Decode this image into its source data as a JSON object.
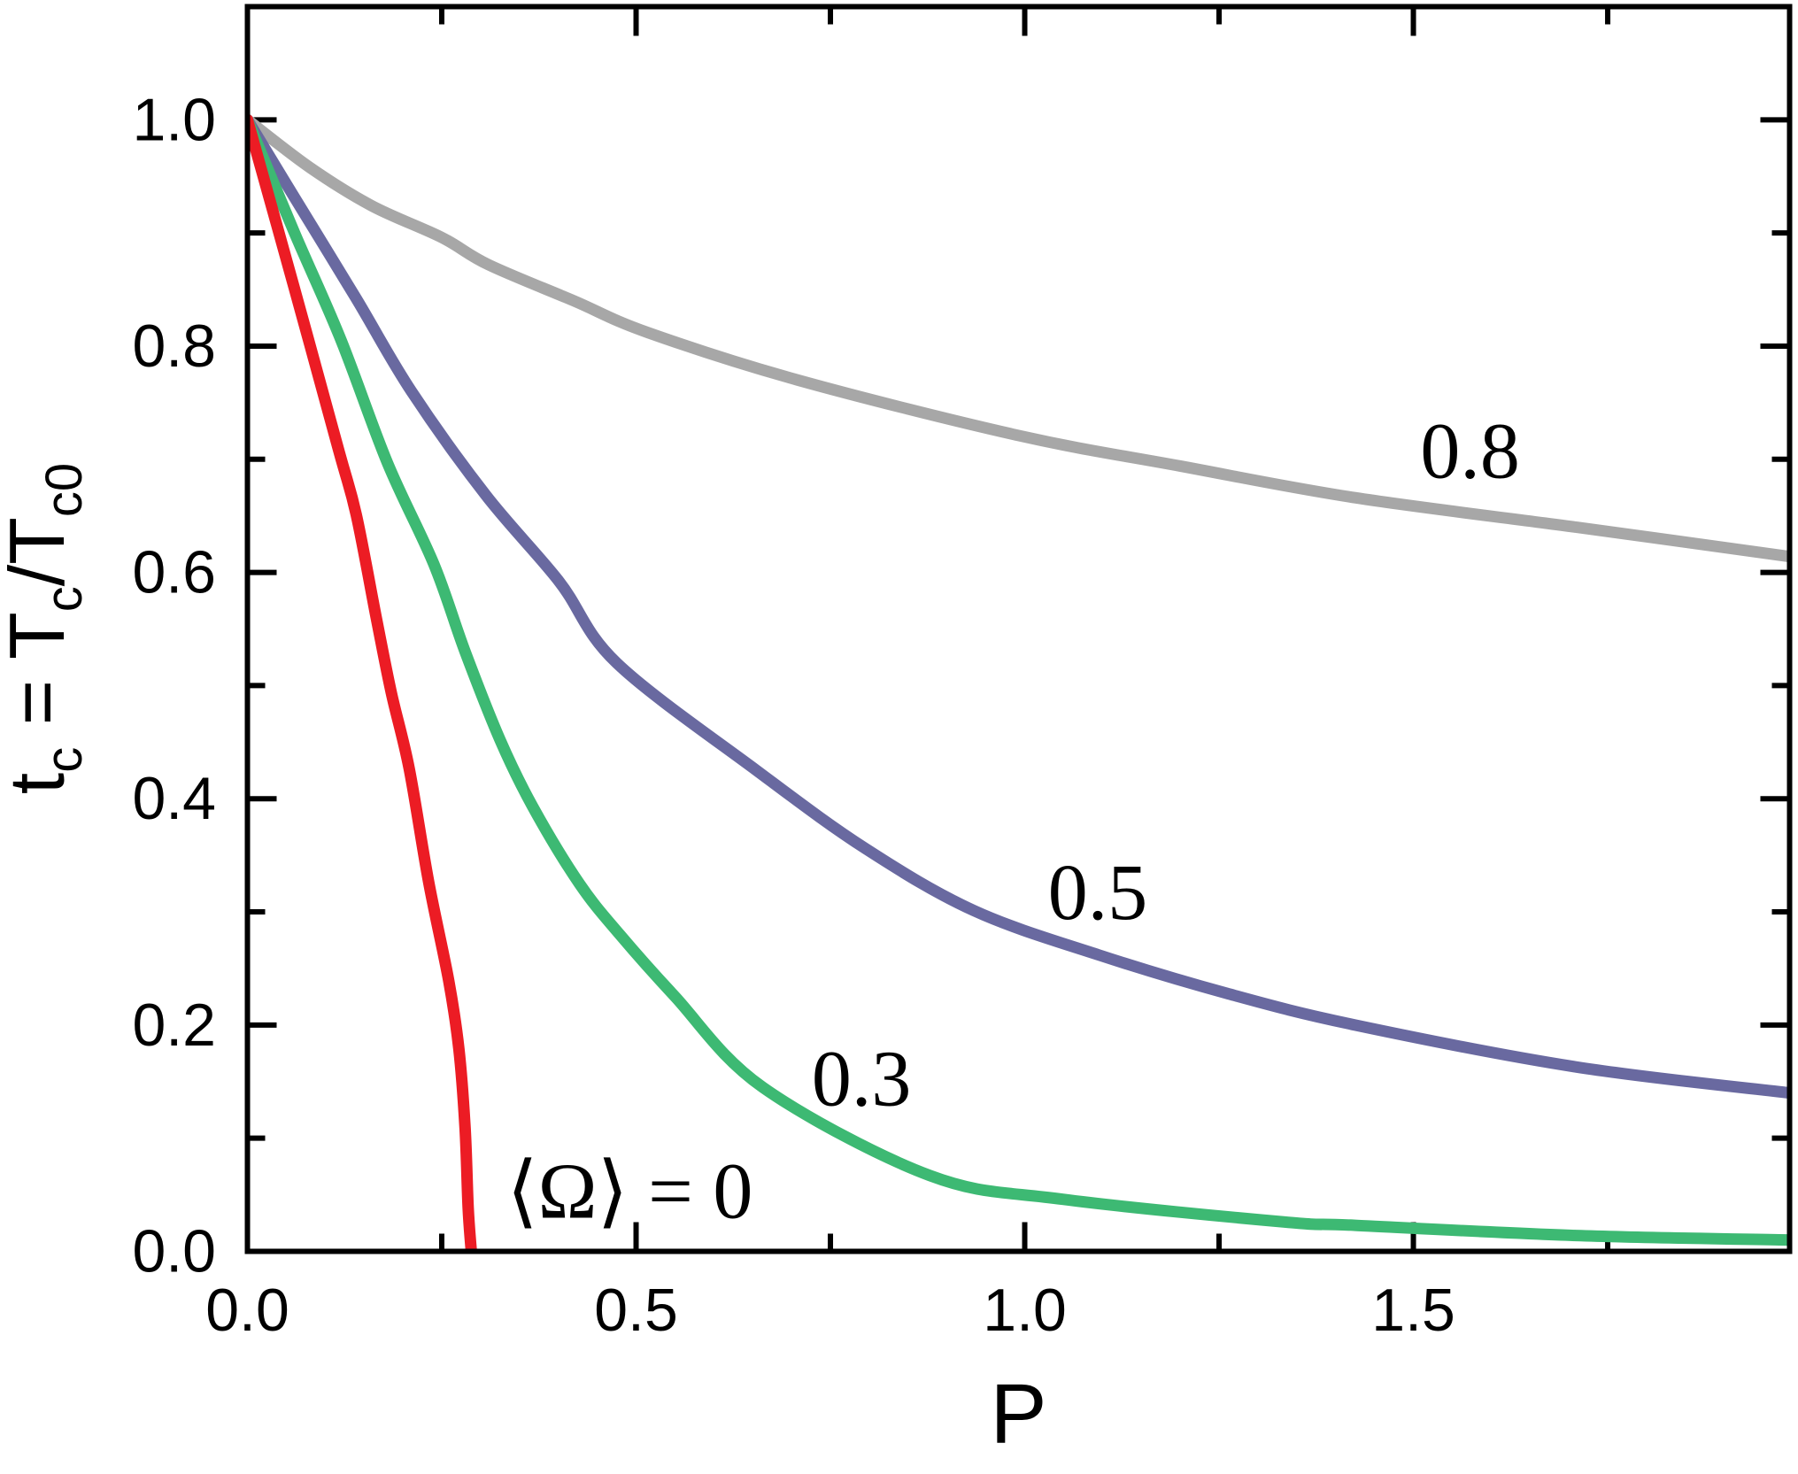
{
  "chart_data": {
    "type": "line",
    "xlabel": "P",
    "ylabel": "tc = Tc/Tc0",
    "ylabel_parts": [
      {
        "text": "t",
        "sub": false
      },
      {
        "text": "c",
        "sub": true
      },
      {
        "text": " = T",
        "sub": false
      },
      {
        "text": "c",
        "sub": true
      },
      {
        "text": "/T",
        "sub": false
      },
      {
        "text": "c0",
        "sub": true
      }
    ],
    "x_range": [
      0,
      1.984
    ],
    "y_range": [
      0,
      1.1
    ],
    "grid": false,
    "legend_position": "none (curves labeled inline)",
    "x_ticks": {
      "major": [
        {
          "value": 0.0,
          "label": "0.0"
        },
        {
          "value": 0.5,
          "label": "0.5"
        },
        {
          "value": 1.0,
          "label": "1.0"
        },
        {
          "value": 1.5,
          "label": "1.5"
        }
      ],
      "minor": [
        0.25,
        0.75,
        1.25,
        1.75
      ]
    },
    "y_ticks": {
      "major": [
        {
          "value": 0.0,
          "label": "0.0"
        },
        {
          "value": 0.2,
          "label": "0.2"
        },
        {
          "value": 0.4,
          "label": "0.4"
        },
        {
          "value": 0.6,
          "label": "0.6"
        },
        {
          "value": 0.8,
          "label": "0.8"
        },
        {
          "value": 1.0,
          "label": "1.0"
        }
      ],
      "minor": [
        0.1,
        0.3,
        0.5,
        0.7,
        0.9
      ]
    },
    "colors": {
      "background": "#ffffff",
      "axis": "#000000",
      "omega_0.8": "#a7a7a7",
      "omega_0.5": "#6969a0",
      "omega_0.3": "#3db973",
      "omega_0": "#ec1c24"
    },
    "series": [
      {
        "name": "omega-0.8",
        "label": "0.8",
        "color": "#a7a7a7",
        "label_anchor": {
          "x": 1.573,
          "y": 0.707
        },
        "points": [
          [
            0,
            1.0
          ],
          [
            0.08,
            0.958
          ],
          [
            0.16,
            0.924
          ],
          [
            0.25,
            0.896
          ],
          [
            0.31,
            0.872
          ],
          [
            0.42,
            0.84
          ],
          [
            0.515,
            0.812
          ],
          [
            0.708,
            0.77
          ],
          [
            0.992,
            0.721
          ],
          [
            1.2,
            0.694
          ],
          [
            1.425,
            0.666
          ],
          [
            1.709,
            0.64
          ],
          [
            1.984,
            0.614
          ]
        ]
      },
      {
        "name": "omega-0.5",
        "label": "0.5",
        "color": "#6969a0",
        "label_anchor": {
          "x": 1.094,
          "y": 0.317
        },
        "points": [
          [
            0,
            1.0
          ],
          [
            0.06,
            0.932
          ],
          [
            0.14,
            0.842
          ],
          [
            0.211,
            0.76
          ],
          [
            0.307,
            0.668
          ],
          [
            0.401,
            0.592
          ],
          [
            0.475,
            0.52
          ],
          [
            0.655,
            0.425
          ],
          [
            0.795,
            0.356
          ],
          [
            0.935,
            0.301
          ],
          [
            1.095,
            0.262
          ],
          [
            1.26,
            0.228
          ],
          [
            1.425,
            0.2
          ],
          [
            1.709,
            0.163
          ],
          [
            1.984,
            0.14
          ]
        ]
      },
      {
        "name": "omega-0.3",
        "label": "0.3",
        "color": "#3db973",
        "label_anchor": {
          "x": 0.79,
          "y": 0.152
        },
        "points": [
          [
            0,
            1.0
          ],
          [
            0.06,
            0.901
          ],
          [
            0.12,
            0.806
          ],
          [
            0.18,
            0.697
          ],
          [
            0.24,
            0.607
          ],
          [
            0.28,
            0.53
          ],
          [
            0.325,
            0.452
          ],
          [
            0.367,
            0.393
          ],
          [
            0.427,
            0.325
          ],
          [
            0.479,
            0.28
          ],
          [
            0.549,
            0.226
          ],
          [
            0.663,
            0.145
          ],
          [
            0.878,
            0.067
          ],
          [
            1.049,
            0.046
          ],
          [
            1.333,
            0.026
          ],
          [
            1.425,
            0.023
          ],
          [
            1.709,
            0.014
          ],
          [
            1.984,
            0.01
          ]
        ]
      },
      {
        "name": "omega-0",
        "label": "⟨Ω⟩ = 0",
        "color": "#ec1c24",
        "label_anchor": {
          "x": 0.492,
          "y": 0.053
        },
        "points": [
          [
            0,
            1.0
          ],
          [
            0.06,
            0.852
          ],
          [
            0.117,
            0.709
          ],
          [
            0.14,
            0.651
          ],
          [
            0.166,
            0.559
          ],
          [
            0.185,
            0.494
          ],
          [
            0.208,
            0.427
          ],
          [
            0.233,
            0.327
          ],
          [
            0.259,
            0.239
          ],
          [
            0.272,
            0.179
          ],
          [
            0.28,
            0.109
          ],
          [
            0.284,
            0.038
          ],
          [
            0.288,
            0.0
          ]
        ]
      }
    ]
  }
}
